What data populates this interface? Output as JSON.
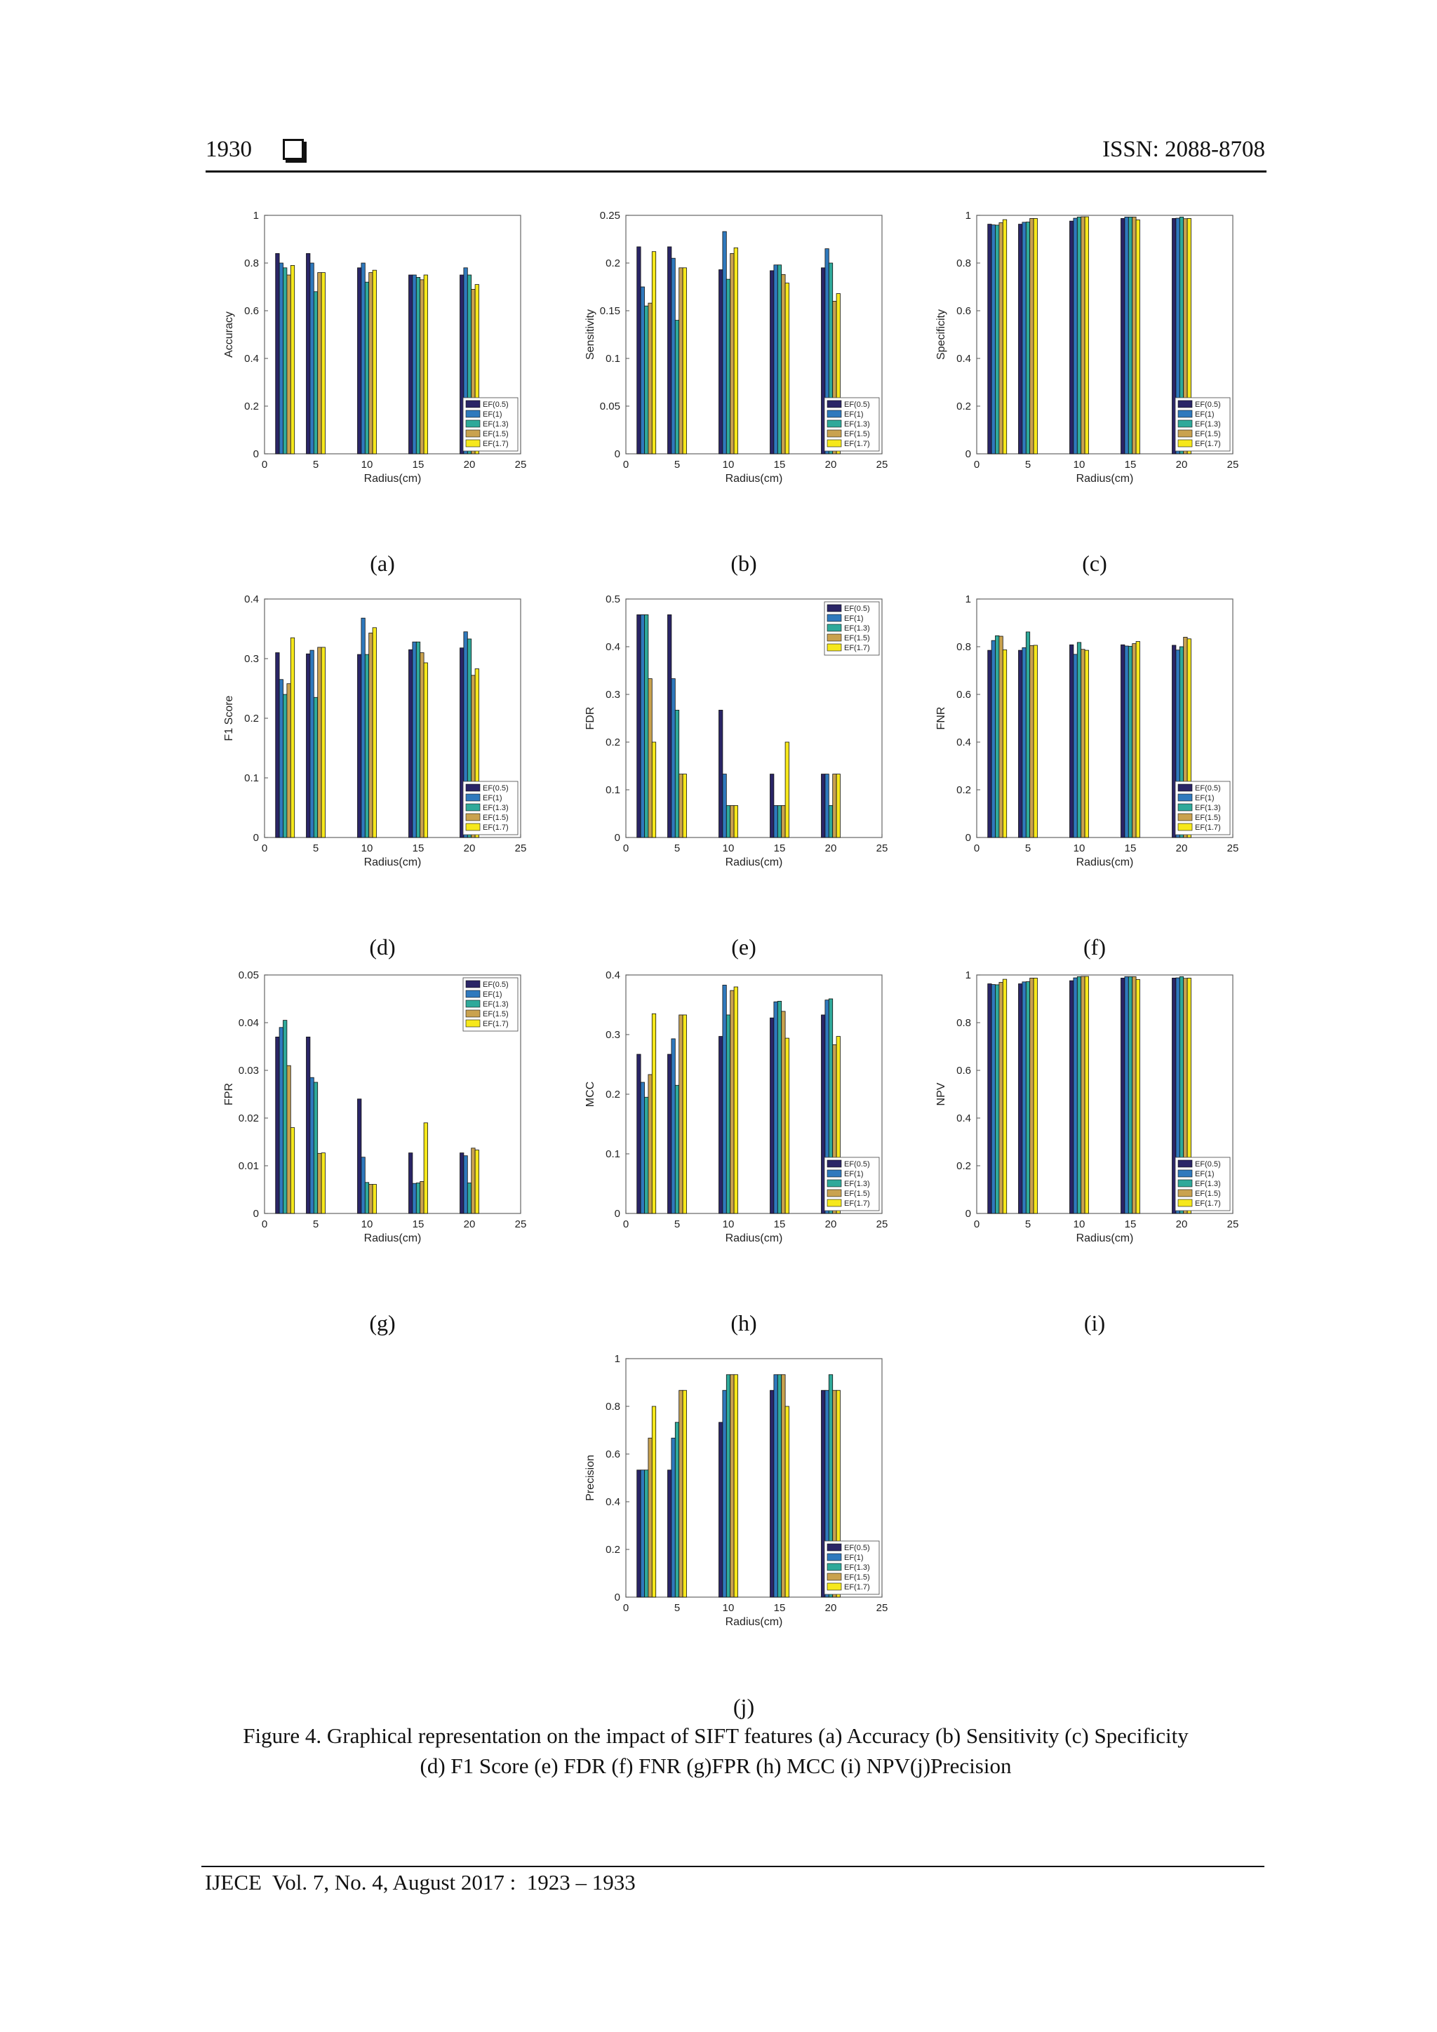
{
  "header": {
    "page_number": "1930",
    "issn": "ISSN: 2088-8708"
  },
  "caption": {
    "line1": "Figure 4. Graphical representation on the impact of SIFT features (a) Accuracy (b) Sensitivity (c) Specificity",
    "line2": "(d) F1 Score (e) FDR (f) FNR (g)FPR (h) MCC (i) NPV(j)Precision"
  },
  "footer": {
    "text": "IJECE  Vol. 7, No. 4, August 2017 :  1923 – 1933"
  },
  "colors": {
    "EF(0.5)": "#2a2566",
    "EF(1)": "#2f79bd",
    "EF(1.3)": "#2fa99a",
    "EF(1.5)": "#c9a24e",
    "EF(1.7)": "#f6e81c"
  },
  "chart_data": [
    {
      "id": "a",
      "panel_label": "(a)",
      "type": "bar",
      "xlabel": "Radius(cm)",
      "ylabel": "Accuracy",
      "xlim": [
        0,
        25
      ],
      "ylim": [
        0,
        1
      ],
      "xticks": [
        0,
        5,
        10,
        15,
        20,
        25
      ],
      "yticks": [
        0,
        0.2,
        0.4,
        0.6,
        0.8,
        1
      ],
      "ytick_labels": [
        "0",
        "0.2",
        "0.4",
        "0.6",
        "0.8",
        "1"
      ],
      "legend_position": "bottom-right",
      "categories": [
        2,
        5,
        10,
        15,
        20
      ],
      "series": [
        {
          "name": "EF(0.5)",
          "values": [
            0.84,
            0.84,
            0.78,
            0.75,
            0.75
          ]
        },
        {
          "name": "EF(1)",
          "values": [
            0.8,
            0.8,
            0.8,
            0.75,
            0.78
          ]
        },
        {
          "name": "EF(1.3)",
          "values": [
            0.78,
            0.68,
            0.72,
            0.74,
            0.75
          ]
        },
        {
          "name": "EF(1.5)",
          "values": [
            0.75,
            0.76,
            0.76,
            0.73,
            0.69
          ]
        },
        {
          "name": "EF(1.7)",
          "values": [
            0.79,
            0.76,
            0.77,
            0.75,
            0.71
          ]
        }
      ]
    },
    {
      "id": "b",
      "panel_label": "(b)",
      "type": "bar",
      "xlabel": "Radius(cm)",
      "ylabel": "Sensitivity",
      "xlim": [
        0,
        25
      ],
      "ylim": [
        0,
        0.25
      ],
      "xticks": [
        0,
        5,
        10,
        15,
        20,
        25
      ],
      "yticks": [
        0,
        0.05,
        0.1,
        0.15,
        0.2,
        0.25
      ],
      "ytick_labels": [
        "0",
        "0.05",
        "0.1",
        "0.15",
        "0.2",
        "0.25"
      ],
      "legend_position": "bottom-right",
      "categories": [
        2,
        5,
        10,
        15,
        20
      ],
      "series": [
        {
          "name": "EF(0.5)",
          "values": [
            0.217,
            0.217,
            0.193,
            0.192,
            0.195
          ]
        },
        {
          "name": "EF(1)",
          "values": [
            0.175,
            0.205,
            0.233,
            0.198,
            0.215
          ]
        },
        {
          "name": "EF(1.3)",
          "values": [
            0.155,
            0.14,
            0.183,
            0.198,
            0.2
          ]
        },
        {
          "name": "EF(1.5)",
          "values": [
            0.158,
            0.195,
            0.21,
            0.188,
            0.16
          ]
        },
        {
          "name": "EF(1.7)",
          "values": [
            0.212,
            0.195,
            0.216,
            0.179,
            0.168
          ]
        }
      ]
    },
    {
      "id": "c",
      "panel_label": "(c)",
      "type": "bar",
      "xlabel": "Radius(cm)",
      "ylabel": "Specificity",
      "xlim": [
        0,
        25
      ],
      "ylim": [
        0,
        1
      ],
      "xticks": [
        0,
        5,
        10,
        15,
        20,
        25
      ],
      "yticks": [
        0,
        0.2,
        0.4,
        0.6,
        0.8,
        1
      ],
      "ytick_labels": [
        "0",
        "0.2",
        "0.4",
        "0.6",
        "0.8",
        "1"
      ],
      "legend_position": "bottom-right",
      "categories": [
        2,
        5,
        10,
        15,
        20
      ],
      "series": [
        {
          "name": "EF(0.5)",
          "values": [
            0.963,
            0.963,
            0.976,
            0.987,
            0.987
          ]
        },
        {
          "name": "EF(1)",
          "values": [
            0.96,
            0.971,
            0.988,
            0.993,
            0.988
          ]
        },
        {
          "name": "EF(1.3)",
          "values": [
            0.959,
            0.972,
            0.993,
            0.993,
            0.993
          ]
        },
        {
          "name": "EF(1.5)",
          "values": [
            0.969,
            0.987,
            0.994,
            0.993,
            0.986
          ]
        },
        {
          "name": "EF(1.7)",
          "values": [
            0.982,
            0.987,
            0.994,
            0.981,
            0.987
          ]
        }
      ]
    },
    {
      "id": "d",
      "panel_label": "(d)",
      "type": "bar",
      "xlabel": "Radius(cm)",
      "ylabel": "F1 Score",
      "xlim": [
        0,
        25
      ],
      "ylim": [
        0,
        0.4
      ],
      "xticks": [
        0,
        5,
        10,
        15,
        20,
        25
      ],
      "yticks": [
        0,
        0.1,
        0.2,
        0.3,
        0.4
      ],
      "ytick_labels": [
        "0",
        "0.1",
        "0.2",
        "0.3",
        "0.4"
      ],
      "legend_position": "bottom-right",
      "categories": [
        2,
        5,
        10,
        15,
        20
      ],
      "series": [
        {
          "name": "EF(0.5)",
          "values": [
            0.31,
            0.308,
            0.307,
            0.315,
            0.318
          ]
        },
        {
          "name": "EF(1)",
          "values": [
            0.265,
            0.314,
            0.368,
            0.328,
            0.345
          ]
        },
        {
          "name": "EF(1.3)",
          "values": [
            0.24,
            0.235,
            0.307,
            0.328,
            0.333
          ]
        },
        {
          "name": "EF(1.5)",
          "values": [
            0.258,
            0.319,
            0.343,
            0.31,
            0.272
          ]
        },
        {
          "name": "EF(1.7)",
          "values": [
            0.335,
            0.319,
            0.352,
            0.293,
            0.283
          ]
        }
      ]
    },
    {
      "id": "e",
      "panel_label": "(e)",
      "type": "bar",
      "xlabel": "Radius(cm)",
      "ylabel": "FDR",
      "xlim": [
        0,
        25
      ],
      "ylim": [
        0,
        0.5
      ],
      "xticks": [
        0,
        5,
        10,
        15,
        20,
        25
      ],
      "yticks": [
        0,
        0.1,
        0.2,
        0.3,
        0.4,
        0.5
      ],
      "ytick_labels": [
        "0",
        "0.1",
        "0.2",
        "0.3",
        "0.4",
        "0.5"
      ],
      "legend_position": "top-right",
      "categories": [
        2,
        5,
        10,
        15,
        20
      ],
      "series": [
        {
          "name": "EF(0.5)",
          "values": [
            0.467,
            0.467,
            0.267,
            0.133,
            0.133
          ]
        },
        {
          "name": "EF(1)",
          "values": [
            0.467,
            0.333,
            0.133,
            0.067,
            0.133
          ]
        },
        {
          "name": "EF(1.3)",
          "values": [
            0.467,
            0.267,
            0.067,
            0.067,
            0.067
          ]
        },
        {
          "name": "EF(1.5)",
          "values": [
            0.333,
            0.133,
            0.067,
            0.067,
            0.133
          ]
        },
        {
          "name": "EF(1.7)",
          "values": [
            0.2,
            0.133,
            0.067,
            0.2,
            0.133
          ]
        }
      ]
    },
    {
      "id": "f",
      "panel_label": "(f)",
      "type": "bar",
      "xlabel": "Radius(cm)",
      "ylabel": "FNR",
      "xlim": [
        0,
        25
      ],
      "ylim": [
        0,
        1
      ],
      "xticks": [
        0,
        5,
        10,
        15,
        20,
        25
      ],
      "yticks": [
        0,
        0.2,
        0.4,
        0.6,
        0.8,
        1
      ],
      "ytick_labels": [
        "0",
        "0.2",
        "0.4",
        "0.6",
        "0.8",
        "1"
      ],
      "legend_position": "bottom-right",
      "categories": [
        2,
        5,
        10,
        15,
        20
      ],
      "series": [
        {
          "name": "EF(0.5)",
          "values": [
            0.785,
            0.785,
            0.808,
            0.808,
            0.806
          ]
        },
        {
          "name": "EF(1)",
          "values": [
            0.826,
            0.796,
            0.768,
            0.803,
            0.786
          ]
        },
        {
          "name": "EF(1.3)",
          "values": [
            0.846,
            0.862,
            0.818,
            0.802,
            0.8
          ]
        },
        {
          "name": "EF(1.5)",
          "values": [
            0.844,
            0.805,
            0.789,
            0.813,
            0.84
          ]
        },
        {
          "name": "EF(1.7)",
          "values": [
            0.787,
            0.806,
            0.785,
            0.822,
            0.833
          ]
        }
      ]
    },
    {
      "id": "g",
      "panel_label": "(g)",
      "type": "bar",
      "xlabel": "Radius(cm)",
      "ylabel": "FPR",
      "xlim": [
        0,
        25
      ],
      "ylim": [
        0,
        0.05
      ],
      "xticks": [
        0,
        5,
        10,
        15,
        20,
        25
      ],
      "yticks": [
        0,
        0.01,
        0.02,
        0.03,
        0.04,
        0.05
      ],
      "ytick_labels": [
        "0",
        "0.01",
        "0.02",
        "0.03",
        "0.04",
        "0.05"
      ],
      "legend_position": "top-right",
      "categories": [
        2,
        5,
        10,
        15,
        20
      ],
      "series": [
        {
          "name": "EF(0.5)",
          "values": [
            0.037,
            0.037,
            0.024,
            0.0127,
            0.0127
          ]
        },
        {
          "name": "EF(1)",
          "values": [
            0.039,
            0.0285,
            0.0118,
            0.0063,
            0.0121
          ]
        },
        {
          "name": "EF(1.3)",
          "values": [
            0.0405,
            0.0275,
            0.0065,
            0.0064,
            0.0064
          ]
        },
        {
          "name": "EF(1.5)",
          "values": [
            0.031,
            0.0126,
            0.0061,
            0.0067,
            0.0137
          ]
        },
        {
          "name": "EF(1.7)",
          "values": [
            0.018,
            0.0127,
            0.0061,
            0.019,
            0.0133
          ]
        }
      ]
    },
    {
      "id": "h",
      "panel_label": "(h)",
      "type": "bar",
      "xlabel": "Radius(cm)",
      "ylabel": "MCC",
      "xlim": [
        0,
        25
      ],
      "ylim": [
        0,
        0.4
      ],
      "xticks": [
        0,
        5,
        10,
        15,
        20,
        25
      ],
      "yticks": [
        0,
        0.1,
        0.2,
        0.3,
        0.4
      ],
      "ytick_labels": [
        "0",
        "0.1",
        "0.2",
        "0.3",
        "0.4"
      ],
      "legend_position": "bottom-right",
      "categories": [
        2,
        5,
        10,
        15,
        20
      ],
      "series": [
        {
          "name": "EF(0.5)",
          "values": [
            0.267,
            0.267,
            0.297,
            0.328,
            0.333
          ]
        },
        {
          "name": "EF(1)",
          "values": [
            0.22,
            0.293,
            0.383,
            0.355,
            0.358
          ]
        },
        {
          "name": "EF(1.3)",
          "values": [
            0.195,
            0.215,
            0.333,
            0.356,
            0.36
          ]
        },
        {
          "name": "EF(1.5)",
          "values": [
            0.233,
            0.333,
            0.374,
            0.339,
            0.283
          ]
        },
        {
          "name": "EF(1.7)",
          "values": [
            0.335,
            0.333,
            0.38,
            0.294,
            0.297
          ]
        }
      ]
    },
    {
      "id": "i",
      "panel_label": "(i)",
      "type": "bar",
      "xlabel": "Radius(cm)",
      "ylabel": "NPV",
      "xlim": [
        0,
        25
      ],
      "ylim": [
        0,
        1
      ],
      "xticks": [
        0,
        5,
        10,
        15,
        20,
        25
      ],
      "yticks": [
        0,
        0.2,
        0.4,
        0.6,
        0.8,
        1
      ],
      "ytick_labels": [
        "0",
        "0.2",
        "0.4",
        "0.6",
        "0.8",
        "1"
      ],
      "legend_position": "bottom-right",
      "categories": [
        2,
        5,
        10,
        15,
        20
      ],
      "series": [
        {
          "name": "EF(0.5)",
          "values": [
            0.963,
            0.963,
            0.976,
            0.987,
            0.987
          ]
        },
        {
          "name": "EF(1)",
          "values": [
            0.96,
            0.971,
            0.988,
            0.993,
            0.988
          ]
        },
        {
          "name": "EF(1.3)",
          "values": [
            0.959,
            0.972,
            0.993,
            0.993,
            0.993
          ]
        },
        {
          "name": "EF(1.5)",
          "values": [
            0.969,
            0.987,
            0.994,
            0.993,
            0.986
          ]
        },
        {
          "name": "EF(1.7)",
          "values": [
            0.982,
            0.987,
            0.994,
            0.981,
            0.987
          ]
        }
      ]
    },
    {
      "id": "j",
      "panel_label": "(j)",
      "type": "bar",
      "xlabel": "Radius(cm)",
      "ylabel": "Precision",
      "xlim": [
        0,
        25
      ],
      "ylim": [
        0,
        1
      ],
      "xticks": [
        0,
        5,
        10,
        15,
        20,
        25
      ],
      "yticks": [
        0,
        0.2,
        0.4,
        0.6,
        0.8,
        1
      ],
      "ytick_labels": [
        "0",
        "0.2",
        "0.4",
        "0.6",
        "0.8",
        "1"
      ],
      "legend_position": "bottom-right",
      "categories": [
        2,
        5,
        10,
        15,
        20
      ],
      "series": [
        {
          "name": "EF(0.5)",
          "values": [
            0.533,
            0.533,
            0.733,
            0.867,
            0.867
          ]
        },
        {
          "name": "EF(1)",
          "values": [
            0.533,
            0.667,
            0.867,
            0.933,
            0.867
          ]
        },
        {
          "name": "EF(1.3)",
          "values": [
            0.533,
            0.733,
            0.933,
            0.933,
            0.933
          ]
        },
        {
          "name": "EF(1.5)",
          "values": [
            0.667,
            0.867,
            0.933,
            0.933,
            0.867
          ]
        },
        {
          "name": "EF(1.7)",
          "values": [
            0.8,
            0.867,
            0.933,
            0.8,
            0.867
          ]
        }
      ]
    }
  ]
}
